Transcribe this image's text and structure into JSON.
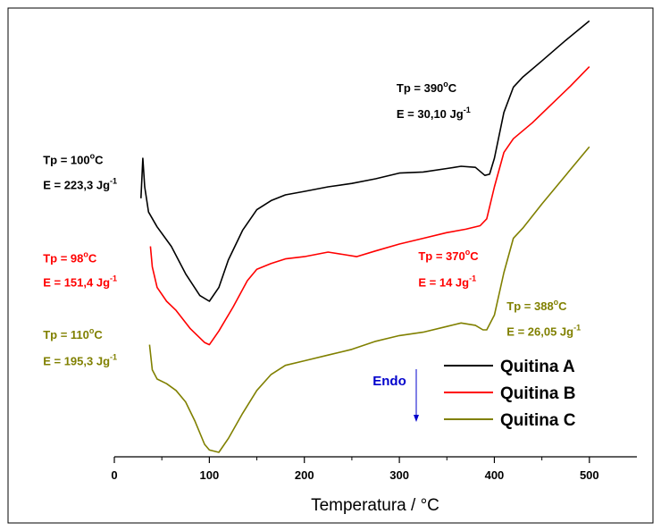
{
  "chart_data": {
    "type": "line",
    "xlabel": "Temperatura / °C",
    "xlim": [
      0,
      550
    ],
    "xticks": [
      0,
      100,
      200,
      300,
      400,
      500
    ],
    "y_axis_shown": false,
    "grid": false,
    "legend_placement": "bottom-right",
    "series": [
      {
        "name": "Quitina A",
        "color": "#000000",
        "points": [
          [
            28,
            1.9
          ],
          [
            30,
            2.25
          ],
          [
            32,
            2.0
          ],
          [
            36,
            1.78
          ],
          [
            45,
            1.65
          ],
          [
            60,
            1.48
          ],
          [
            75,
            1.24
          ],
          [
            90,
            1.05
          ],
          [
            100,
            1.0
          ],
          [
            110,
            1.12
          ],
          [
            120,
            1.36
          ],
          [
            135,
            1.62
          ],
          [
            150,
            1.8
          ],
          [
            165,
            1.88
          ],
          [
            180,
            1.93
          ],
          [
            200,
            1.96
          ],
          [
            225,
            2.0
          ],
          [
            250,
            2.03
          ],
          [
            275,
            2.07
          ],
          [
            300,
            2.12
          ],
          [
            325,
            2.13
          ],
          [
            350,
            2.16
          ],
          [
            365,
            2.18
          ],
          [
            380,
            2.17
          ],
          [
            390,
            2.1
          ],
          [
            395,
            2.11
          ],
          [
            400,
            2.25
          ],
          [
            410,
            2.65
          ],
          [
            420,
            2.87
          ],
          [
            430,
            2.96
          ],
          [
            450,
            3.1
          ],
          [
            475,
            3.28
          ],
          [
            500,
            3.45
          ]
        ]
      },
      {
        "name": "Quitina B",
        "color": "#ff0000",
        "points": [
          [
            38,
            1.48
          ],
          [
            40,
            1.3
          ],
          [
            45,
            1.12
          ],
          [
            55,
            1.0
          ],
          [
            65,
            0.92
          ],
          [
            80,
            0.76
          ],
          [
            95,
            0.64
          ],
          [
            100,
            0.62
          ],
          [
            110,
            0.74
          ],
          [
            125,
            0.95
          ],
          [
            140,
            1.18
          ],
          [
            150,
            1.28
          ],
          [
            165,
            1.33
          ],
          [
            180,
            1.37
          ],
          [
            200,
            1.39
          ],
          [
            225,
            1.43
          ],
          [
            240,
            1.41
          ],
          [
            255,
            1.39
          ],
          [
            275,
            1.44
          ],
          [
            300,
            1.5
          ],
          [
            325,
            1.55
          ],
          [
            350,
            1.6
          ],
          [
            370,
            1.63
          ],
          [
            385,
            1.66
          ],
          [
            392,
            1.72
          ],
          [
            400,
            2.0
          ],
          [
            410,
            2.3
          ],
          [
            420,
            2.42
          ],
          [
            440,
            2.56
          ],
          [
            460,
            2.72
          ],
          [
            480,
            2.88
          ],
          [
            500,
            3.05
          ]
        ]
      },
      {
        "name": "Quitina C",
        "color": "#808000",
        "points": [
          [
            37,
            0.62
          ],
          [
            40,
            0.4
          ],
          [
            45,
            0.32
          ],
          [
            55,
            0.28
          ],
          [
            65,
            0.22
          ],
          [
            75,
            0.12
          ],
          [
            85,
            -0.05
          ],
          [
            95,
            -0.25
          ],
          [
            100,
            -0.3
          ],
          [
            110,
            -0.32
          ],
          [
            120,
            -0.2
          ],
          [
            135,
            0.02
          ],
          [
            150,
            0.22
          ],
          [
            165,
            0.36
          ],
          [
            180,
            0.44
          ],
          [
            200,
            0.48
          ],
          [
            225,
            0.53
          ],
          [
            250,
            0.58
          ],
          [
            275,
            0.65
          ],
          [
            300,
            0.7
          ],
          [
            325,
            0.73
          ],
          [
            350,
            0.78
          ],
          [
            365,
            0.81
          ],
          [
            380,
            0.79
          ],
          [
            388,
            0.75
          ],
          [
            392,
            0.75
          ],
          [
            400,
            0.88
          ],
          [
            410,
            1.25
          ],
          [
            420,
            1.55
          ],
          [
            430,
            1.64
          ],
          [
            450,
            1.85
          ],
          [
            475,
            2.1
          ],
          [
            500,
            2.35
          ]
        ]
      }
    ],
    "annotations": [
      {
        "text": "Tp = 100",
        "sup": "o",
        "after": "C",
        "color": "#000000",
        "x": -75,
        "y": 2.2
      },
      {
        "text": "E  = 223,3 Jg",
        "sup": "-1",
        "after": "",
        "color": "#000000",
        "x": -75,
        "y": 1.98
      },
      {
        "text": "Tp = 390",
        "sup": "o",
        "after": "C",
        "color": "#000000",
        "x": 297,
        "y": 2.83
      },
      {
        "text": "E  = 30,10 Jg",
        "sup": "-1",
        "after": "",
        "color": "#000000",
        "x": 297,
        "y": 2.6
      },
      {
        "text": "Tp = 98",
        "sup": "o",
        "after": "C",
        "color": "#ff0000",
        "x": -75,
        "y": 1.34
      },
      {
        "text": "E  = 151,4 Jg",
        "sup": "-1",
        "after": "",
        "color": "#ff0000",
        "x": -75,
        "y": 1.13
      },
      {
        "text": "Tp = 370",
        "sup": "o",
        "after": "C",
        "color": "#ff0000",
        "x": 320,
        "y": 1.36
      },
      {
        "text": "E  = 14 Jg",
        "sup": "-1",
        "after": "",
        "color": "#ff0000",
        "x": 320,
        "y": 1.13
      },
      {
        "text": "Tp = 110",
        "sup": "o",
        "after": "C",
        "color": "#808000",
        "x": -75,
        "y": 0.67
      },
      {
        "text": "E  = 195,3 Jg",
        "sup": "-1",
        "after": "",
        "color": "#808000",
        "x": -75,
        "y": 0.44
      },
      {
        "text": "Tp = 388",
        "sup": "o",
        "after": "C",
        "color": "#808000",
        "x": 413,
        "y": 0.92
      },
      {
        "text": "E  = 26,05 Jg",
        "sup": "-1",
        "after": "",
        "color": "#808000",
        "x": 413,
        "y": 0.7
      }
    ],
    "endo_indicator": {
      "label": "Endo",
      "direction": "down",
      "color": "#0000cc"
    }
  }
}
